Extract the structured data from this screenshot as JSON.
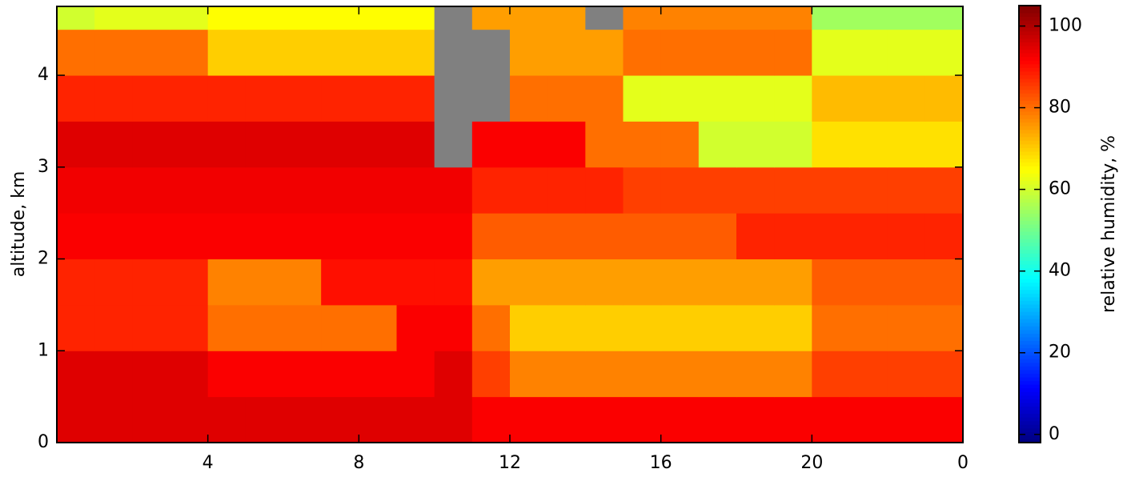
{
  "chart_data": {
    "type": "heatmap",
    "y_label": "altitude, km",
    "colorbar_label": "relative humidity, %",
    "xlim": [
      0,
      24
    ],
    "ylim": [
      0,
      4.75
    ],
    "xticks": [
      4,
      8,
      12,
      16,
      20,
      {
        "value": 24,
        "label": "0"
      }
    ],
    "yticks": [
      0,
      1,
      2,
      3,
      4
    ],
    "clim": [
      -2,
      105
    ],
    "cticks": [
      0,
      20,
      40,
      60,
      80,
      100
    ],
    "colormap": "jet",
    "missing_color": "#808080",
    "x_bins": [
      0,
      1,
      2,
      3,
      4,
      5,
      6,
      7,
      8,
      9,
      10,
      11,
      12,
      13,
      14,
      15,
      16,
      17,
      18,
      19,
      20,
      21,
      22,
      23,
      24
    ],
    "y_bins": [
      0,
      0.5,
      1,
      1.5,
      2,
      2.5,
      3,
      3.5,
      4,
      4.5,
      4.75
    ],
    "values": [
      [
        95,
        95,
        95,
        95,
        95,
        95,
        95,
        95,
        95,
        95,
        95,
        92,
        92,
        92,
        92,
        92,
        92,
        92,
        92,
        92,
        92,
        92,
        92,
        92
      ],
      [
        95,
        95,
        95,
        95,
        92,
        92,
        92,
        92,
        92,
        92,
        95,
        85,
        78,
        78,
        78,
        78,
        78,
        78,
        78,
        78,
        85,
        85,
        85,
        85
      ],
      [
        88,
        88,
        88,
        88,
        80,
        80,
        80,
        80,
        80,
        92,
        92,
        80,
        70,
        70,
        70,
        70,
        70,
        70,
        70,
        70,
        80,
        80,
        80,
        80
      ],
      [
        88,
        88,
        88,
        88,
        78,
        78,
        78,
        90,
        90,
        90,
        90,
        75,
        75,
        75,
        75,
        75,
        75,
        75,
        75,
        75,
        82,
        82,
        82,
        82
      ],
      [
        92,
        92,
        92,
        92,
        92,
        92,
        92,
        92,
        92,
        92,
        92,
        82,
        82,
        82,
        82,
        82,
        82,
        82,
        88,
        88,
        88,
        88,
        88,
        88
      ],
      [
        93,
        93,
        93,
        93,
        93,
        93,
        93,
        93,
        93,
        93,
        93,
        88,
        88,
        88,
        88,
        85,
        85,
        85,
        85,
        85,
        85,
        85,
        85,
        85
      ],
      [
        95,
        95,
        95,
        95,
        95,
        95,
        95,
        95,
        95,
        95,
        null,
        92,
        92,
        92,
        80,
        80,
        80,
        60,
        60,
        60,
        68,
        68,
        68,
        68
      ],
      [
        88,
        88,
        88,
        88,
        88,
        88,
        88,
        88,
        88,
        88,
        null,
        null,
        80,
        80,
        80,
        62,
        62,
        62,
        62,
        62,
        72,
        72,
        72,
        72
      ],
      [
        80,
        80,
        80,
        80,
        70,
        70,
        70,
        70,
        70,
        70,
        null,
        null,
        75,
        75,
        75,
        80,
        80,
        80,
        80,
        80,
        62,
        62,
        62,
        62
      ],
      [
        60,
        62,
        62,
        62,
        65,
        65,
        65,
        65,
        65,
        65,
        null,
        75,
        75,
        75,
        null,
        78,
        78,
        78,
        78,
        78,
        55,
        55,
        55,
        55
      ]
    ]
  }
}
